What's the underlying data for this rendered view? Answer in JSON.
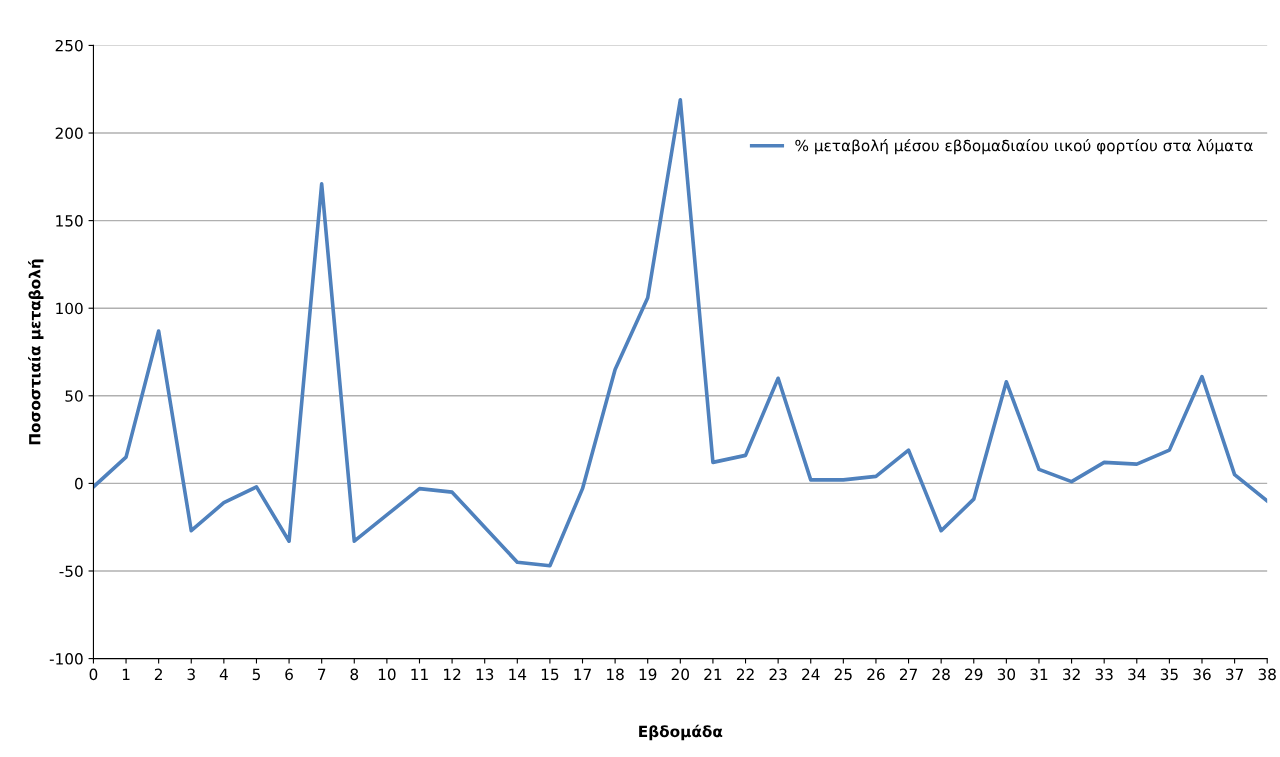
{
  "chart_data": {
    "type": "line",
    "xlabel": "Εβδομάδα",
    "ylabel": "Ποσοστιαία μεταβολή",
    "categories": [
      "0",
      "1",
      "2",
      "3",
      "4",
      "5",
      "6",
      "7",
      "8",
      "10",
      "11",
      "12",
      "13",
      "14",
      "15",
      "17",
      "18",
      "19",
      "20",
      "21",
      "22",
      "23",
      "24",
      "25",
      "26",
      "27",
      "28",
      "29",
      "30",
      "31",
      "32",
      "33",
      "34",
      "35",
      "36",
      "37",
      "38"
    ],
    "series": [
      {
        "name": "% μεταβολή μέσου εβδομαδιαίου ιικού φορτίου στα λύματα",
        "color": "#4f81bd",
        "values": [
          -2,
          15,
          87,
          -27,
          -11,
          -2,
          -33,
          171,
          -33,
          -18,
          -3,
          -5,
          -25,
          -45,
          -47,
          -3,
          65,
          106,
          219,
          12,
          16,
          60,
          2,
          2,
          4,
          19,
          -27,
          -9,
          58,
          8,
          1,
          12,
          11,
          19,
          61,
          5,
          -10
        ]
      }
    ],
    "ylim": [
      -100,
      250
    ],
    "yticks": [
      -100,
      -50,
      0,
      50,
      100,
      150,
      200,
      250
    ],
    "grid": "y",
    "legend": "top right",
    "marker": "none",
    "line_style": "solid"
  }
}
